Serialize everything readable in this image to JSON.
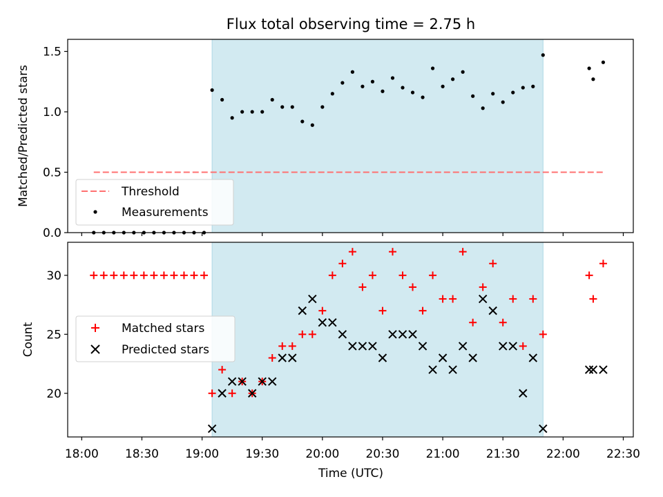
{
  "chart_data": {
    "type": "scatter",
    "title": "Flux total observing time = 2.75 h",
    "xlabel": "Time (UTC)",
    "xlim": [
      "17:53",
      "22:35"
    ],
    "xticks": [
      "18:00",
      "18:30",
      "19:00",
      "19:30",
      "20:00",
      "20:30",
      "21:00",
      "21:30",
      "22:00",
      "22:30"
    ],
    "highlight_span": {
      "start": "19:05",
      "end": "21:50",
      "color": "#add8e6"
    },
    "panels": [
      {
        "ylabel": "Matched/Predicted stars",
        "ylim": [
          0,
          1.6
        ],
        "yticks": [
          "0.0",
          "0.5",
          "1.0",
          "1.5"
        ],
        "legend": {
          "position": "lower-left"
        },
        "series": [
          {
            "name": "Threshold",
            "kind": "dashed-line",
            "color": "#ff7070",
            "points": [
              [
                "18:06",
                0.5
              ],
              [
                "22:20",
                0.5
              ]
            ]
          },
          {
            "name": "Measurements",
            "kind": "dot",
            "color": "#000000",
            "points": [
              [
                "18:06",
                0.0
              ],
              [
                "18:11",
                0.0
              ],
              [
                "18:16",
                0.0
              ],
              [
                "18:21",
                0.0
              ],
              [
                "18:26",
                0.0
              ],
              [
                "18:31",
                0.0
              ],
              [
                "18:36",
                0.0
              ],
              [
                "18:41",
                0.0
              ],
              [
                "18:46",
                0.0
              ],
              [
                "18:51",
                0.0
              ],
              [
                "18:56",
                0.0
              ],
              [
                "19:01",
                0.0
              ],
              [
                "19:05",
                1.18
              ],
              [
                "19:10",
                1.1
              ],
              [
                "19:15",
                0.95
              ],
              [
                "19:20",
                1.0
              ],
              [
                "19:25",
                1.0
              ],
              [
                "19:30",
                1.0
              ],
              [
                "19:35",
                1.1
              ],
              [
                "19:40",
                1.04
              ],
              [
                "19:45",
                1.04
              ],
              [
                "19:50",
                0.92
              ],
              [
                "19:55",
                0.89
              ],
              [
                "20:00",
                1.04
              ],
              [
                "20:05",
                1.15
              ],
              [
                "20:10",
                1.24
              ],
              [
                "20:15",
                1.33
              ],
              [
                "20:20",
                1.21
              ],
              [
                "20:25",
                1.25
              ],
              [
                "20:30",
                1.17
              ],
              [
                "20:35",
                1.28
              ],
              [
                "20:40",
                1.2
              ],
              [
                "20:45",
                1.16
              ],
              [
                "20:50",
                1.12
              ],
              [
                "20:55",
                1.36
              ],
              [
                "21:00",
                1.21
              ],
              [
                "21:05",
                1.27
              ],
              [
                "21:10",
                1.33
              ],
              [
                "21:15",
                1.13
              ],
              [
                "21:20",
                1.03
              ],
              [
                "21:25",
                1.15
              ],
              [
                "21:30",
                1.08
              ],
              [
                "21:35",
                1.16
              ],
              [
                "21:40",
                1.2
              ],
              [
                "21:45",
                1.21
              ],
              [
                "21:50",
                1.47
              ],
              [
                "22:13",
                1.36
              ],
              [
                "22:15",
                1.27
              ],
              [
                "22:20",
                1.41
              ]
            ]
          }
        ]
      },
      {
        "ylabel": "Count",
        "ylim": [
          16.3,
          32.8
        ],
        "yticks": [
          "20",
          "25",
          "30"
        ],
        "legend": {
          "position": "center-left"
        },
        "series": [
          {
            "name": "Matched stars",
            "kind": "plus",
            "color": "#ff0000",
            "points": [
              [
                "18:06",
                30
              ],
              [
                "18:11",
                30
              ],
              [
                "18:16",
                30
              ],
              [
                "18:21",
                30
              ],
              [
                "18:26",
                30
              ],
              [
                "18:31",
                30
              ],
              [
                "18:36",
                30
              ],
              [
                "18:41",
                30
              ],
              [
                "18:46",
                30
              ],
              [
                "18:51",
                30
              ],
              [
                "18:56",
                30
              ],
              [
                "19:01",
                30
              ],
              [
                "19:05",
                20
              ],
              [
                "19:10",
                22
              ],
              [
                "19:15",
                20
              ],
              [
                "19:20",
                21
              ],
              [
                "19:25",
                20
              ],
              [
                "19:30",
                21
              ],
              [
                "19:35",
                23
              ],
              [
                "19:40",
                24
              ],
              [
                "19:45",
                24
              ],
              [
                "19:50",
                25
              ],
              [
                "19:55",
                25
              ],
              [
                "20:00",
                27
              ],
              [
                "20:05",
                30
              ],
              [
                "20:10",
                31
              ],
              [
                "20:15",
                32
              ],
              [
                "20:20",
                29
              ],
              [
                "20:25",
                30
              ],
              [
                "20:30",
                27
              ],
              [
                "20:35",
                32
              ],
              [
                "20:40",
                30
              ],
              [
                "20:45",
                29
              ],
              [
                "20:50",
                27
              ],
              [
                "20:55",
                30
              ],
              [
                "21:00",
                28
              ],
              [
                "21:05",
                28
              ],
              [
                "21:10",
                32
              ],
              [
                "21:15",
                26
              ],
              [
                "21:20",
                29
              ],
              [
                "21:25",
                31
              ],
              [
                "21:30",
                26
              ],
              [
                "21:35",
                28
              ],
              [
                "21:40",
                24
              ],
              [
                "21:45",
                28
              ],
              [
                "21:50",
                25
              ],
              [
                "22:13",
                30
              ],
              [
                "22:15",
                28
              ],
              [
                "22:20",
                31
              ]
            ]
          },
          {
            "name": "Predicted stars",
            "kind": "x",
            "color": "#000000",
            "points": [
              [
                "19:05",
                17
              ],
              [
                "19:10",
                20
              ],
              [
                "19:15",
                21
              ],
              [
                "19:20",
                21
              ],
              [
                "19:25",
                20
              ],
              [
                "19:30",
                21
              ],
              [
                "19:35",
                21
              ],
              [
                "19:40",
                23
              ],
              [
                "19:45",
                23
              ],
              [
                "19:50",
                27
              ],
              [
                "19:55",
                28
              ],
              [
                "20:00",
                26
              ],
              [
                "20:05",
                26
              ],
              [
                "20:10",
                25
              ],
              [
                "20:15",
                24
              ],
              [
                "20:20",
                24
              ],
              [
                "20:25",
                24
              ],
              [
                "20:30",
                23
              ],
              [
                "20:35",
                25
              ],
              [
                "20:40",
                25
              ],
              [
                "20:45",
                25
              ],
              [
                "20:50",
                24
              ],
              [
                "20:55",
                22
              ],
              [
                "21:00",
                23
              ],
              [
                "21:05",
                22
              ],
              [
                "21:10",
                24
              ],
              [
                "21:15",
                23
              ],
              [
                "21:20",
                28
              ],
              [
                "21:25",
                27
              ],
              [
                "21:30",
                24
              ],
              [
                "21:35",
                24
              ],
              [
                "21:40",
                20
              ],
              [
                "21:45",
                23
              ],
              [
                "21:50",
                17
              ],
              [
                "22:13",
                22
              ],
              [
                "22:15",
                22
              ],
              [
                "22:20",
                22
              ]
            ]
          }
        ]
      }
    ]
  }
}
